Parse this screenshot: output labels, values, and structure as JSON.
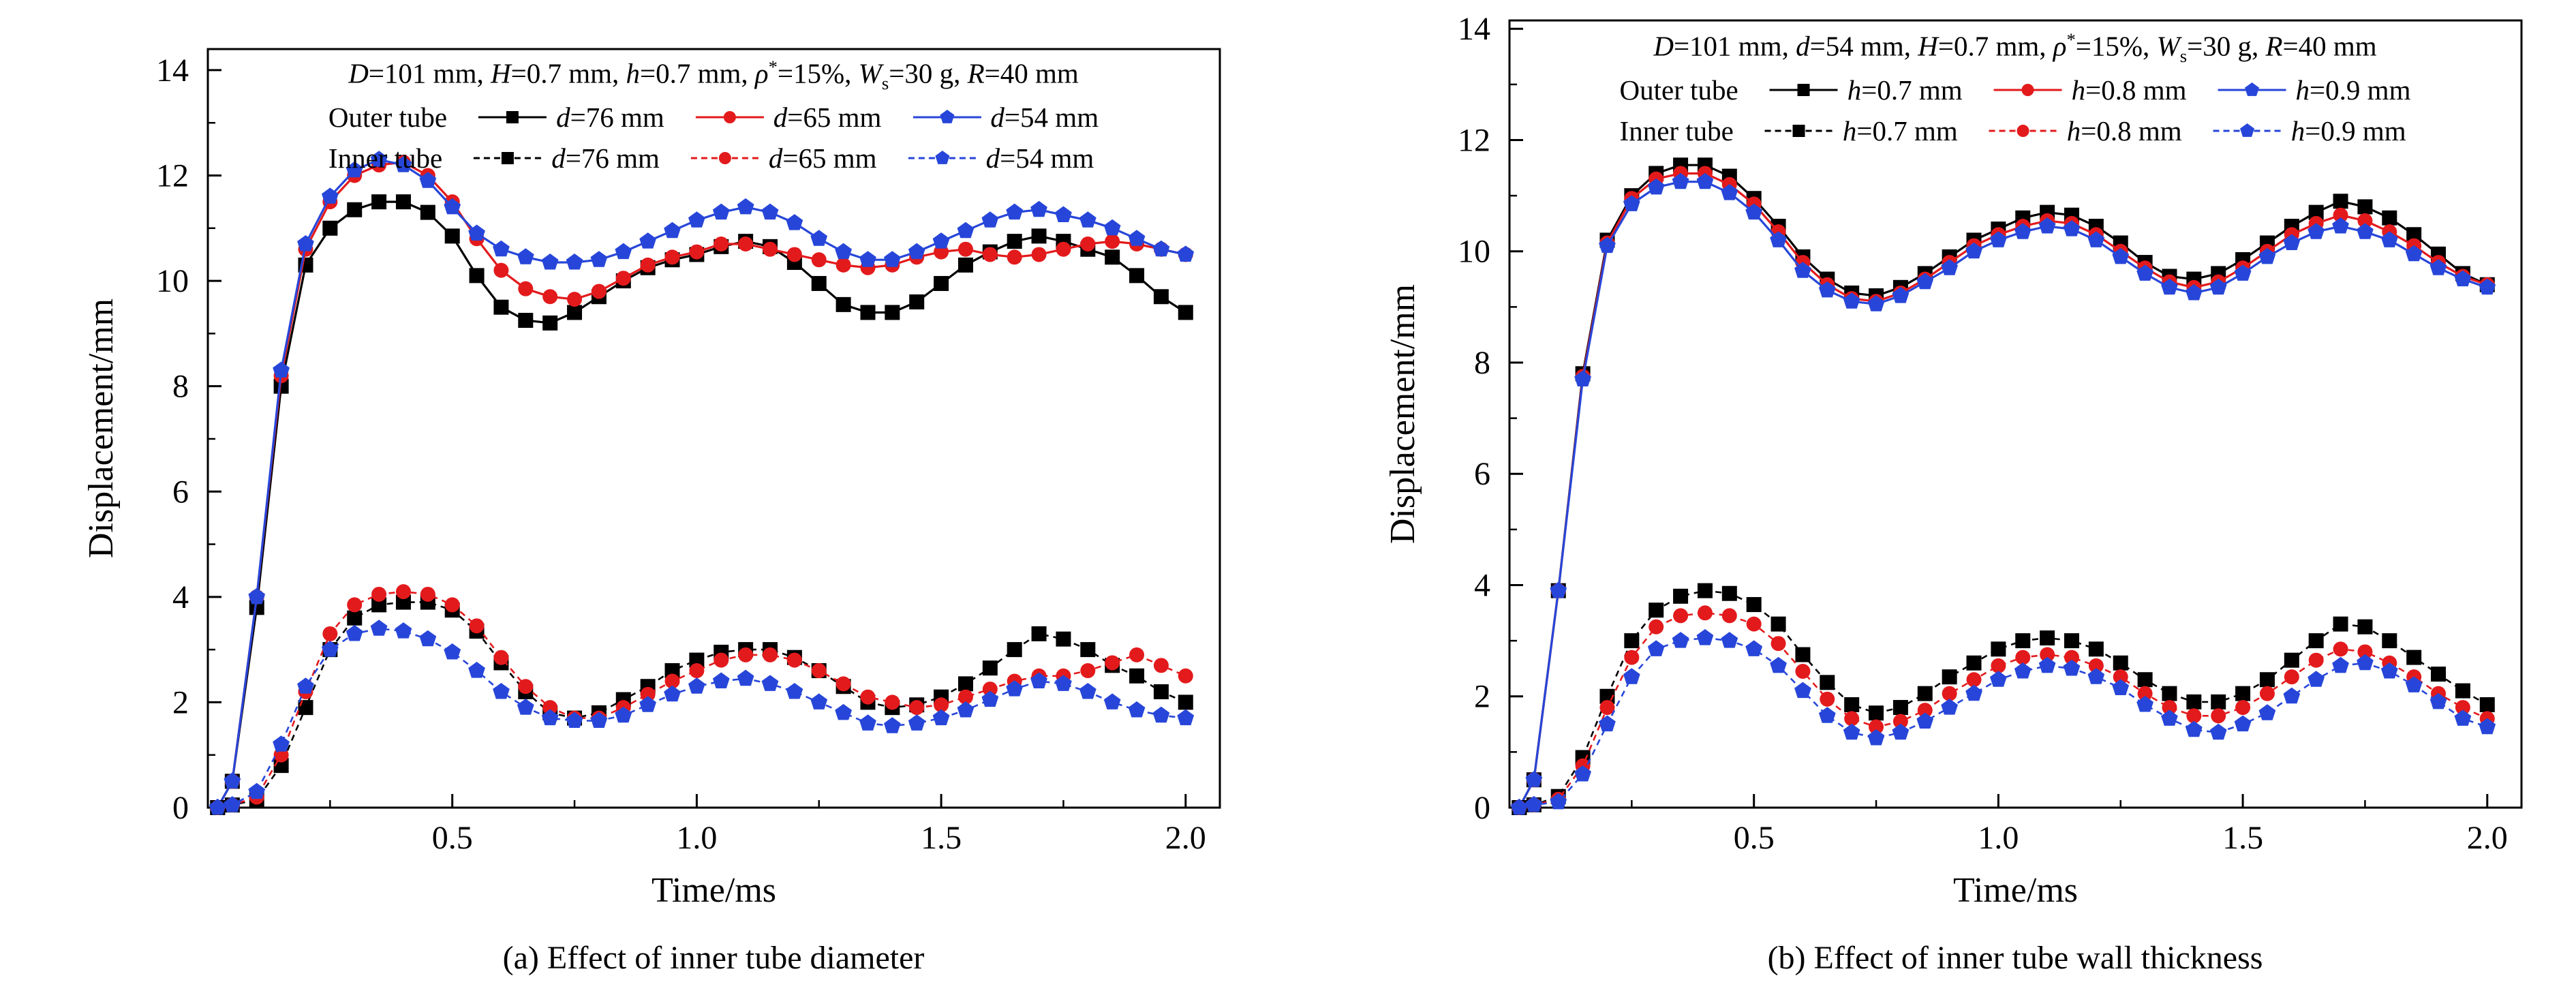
{
  "captions": {
    "a": "(a) Effect of inner tube diameter",
    "b": "(b) Effect of inner tube wall thickness"
  },
  "chart_data": [
    {
      "id": "a",
      "type": "line",
      "xlabel": "Time/ms",
      "ylabel": "Displacement/mm",
      "xlim": [
        0,
        2.07
      ],
      "ylim": [
        0,
        14.4
      ],
      "axes": {
        "x_major": [
          0.5,
          1.0,
          1.5,
          2.0
        ],
        "x_labels": [
          "0.5",
          "1.0",
          "1.5",
          "2.0"
        ],
        "x_minor": [
          0.25,
          0.75,
          1.25,
          1.75
        ],
        "y_major": [
          0,
          2,
          4,
          6,
          8,
          10,
          12,
          14
        ],
        "y_labels": [
          "0",
          "2",
          "4",
          "6",
          "8",
          "10",
          "12",
          "14"
        ],
        "y_minor": [
          1,
          3,
          5,
          7,
          9,
          11,
          13
        ]
      },
      "annotation": [
        {
          "t": "D",
          "i": 1
        },
        {
          "t": "=101 mm, "
        },
        {
          "t": "H",
          "i": 1
        },
        {
          "t": "=0.7 mm, "
        },
        {
          "t": "h",
          "i": 1
        },
        {
          "t": "=0.7 mm, "
        },
        {
          "t": "ρ",
          "i": 1
        },
        {
          "t": "*",
          "sup": 1
        },
        {
          "t": "=15%, "
        },
        {
          "t": "W",
          "i": 1
        },
        {
          "t": "s",
          "sub": 1
        },
        {
          "t": "=30 g, "
        },
        {
          "t": "R",
          "i": 1
        },
        {
          "t": "=40 mm"
        }
      ],
      "x": [
        0.02,
        0.05,
        0.1,
        0.15,
        0.2,
        0.25,
        0.3,
        0.35,
        0.4,
        0.45,
        0.5,
        0.55,
        0.6,
        0.65,
        0.7,
        0.75,
        0.8,
        0.85,
        0.9,
        0.95,
        1.0,
        1.05,
        1.1,
        1.15,
        1.2,
        1.25,
        1.3,
        1.35,
        1.4,
        1.45,
        1.5,
        1.55,
        1.6,
        1.65,
        1.7,
        1.75,
        1.8,
        1.85,
        1.9,
        1.95,
        2.0
      ],
      "series": [
        {
          "key": "outer-d76",
          "group": "Outer tube",
          "label_segments": [
            {
              "t": "d",
              "i": 1
            },
            {
              "t": "=76 mm"
            }
          ],
          "color": "#000000",
          "marker": "square",
          "dash": false,
          "values": [
            0,
            0.5,
            3.8,
            8.0,
            10.3,
            11.0,
            11.35,
            11.5,
            11.5,
            11.3,
            10.85,
            10.1,
            9.5,
            9.25,
            9.2,
            9.4,
            9.7,
            10.0,
            10.25,
            10.4,
            10.5,
            10.65,
            10.75,
            10.65,
            10.35,
            9.95,
            9.55,
            9.4,
            9.4,
            9.6,
            9.95,
            10.3,
            10.55,
            10.75,
            10.85,
            10.75,
            10.6,
            10.45,
            10.1,
            9.7,
            9.4
          ]
        },
        {
          "key": "outer-d65",
          "group": "Outer tube",
          "label_segments": [
            {
              "t": "d",
              "i": 1
            },
            {
              "t": "=65 mm"
            }
          ],
          "color": "#e31a1c",
          "marker": "circle",
          "dash": false,
          "values": [
            0,
            0.5,
            4.0,
            8.2,
            10.6,
            11.5,
            12.0,
            12.2,
            12.25,
            12.0,
            11.5,
            10.8,
            10.2,
            9.85,
            9.7,
            9.65,
            9.8,
            10.05,
            10.3,
            10.45,
            10.55,
            10.7,
            10.7,
            10.6,
            10.5,
            10.4,
            10.3,
            10.25,
            10.3,
            10.45,
            10.55,
            10.6,
            10.5,
            10.45,
            10.5,
            10.6,
            10.7,
            10.75,
            10.7,
            10.6,
            10.5
          ]
        },
        {
          "key": "outer-d54",
          "group": "Outer tube",
          "label_segments": [
            {
              "t": "d",
              "i": 1
            },
            {
              "t": "=54 mm"
            }
          ],
          "color": "#2746d9",
          "marker": "pentagon",
          "dash": false,
          "values": [
            0,
            0.5,
            4.0,
            8.3,
            10.7,
            11.6,
            12.1,
            12.3,
            12.2,
            11.9,
            11.4,
            10.9,
            10.6,
            10.45,
            10.35,
            10.35,
            10.4,
            10.55,
            10.75,
            10.95,
            11.15,
            11.3,
            11.4,
            11.3,
            11.1,
            10.8,
            10.55,
            10.4,
            10.4,
            10.55,
            10.75,
            10.95,
            11.15,
            11.3,
            11.35,
            11.25,
            11.15,
            11.0,
            10.8,
            10.6,
            10.5
          ]
        },
        {
          "key": "inner-d76",
          "group": "Inner tube",
          "label_segments": [
            {
              "t": "d",
              "i": 1
            },
            {
              "t": "=76 mm"
            }
          ],
          "color": "#000000",
          "marker": "square",
          "dash": true,
          "values": [
            0,
            0.05,
            0.15,
            0.8,
            1.9,
            3.0,
            3.6,
            3.85,
            3.9,
            3.9,
            3.75,
            3.35,
            2.75,
            2.2,
            1.8,
            1.7,
            1.8,
            2.05,
            2.3,
            2.6,
            2.8,
            2.95,
            3.0,
            3.0,
            2.85,
            2.6,
            2.3,
            2.0,
            1.9,
            1.95,
            2.1,
            2.35,
            2.65,
            3.0,
            3.3,
            3.2,
            3.0,
            2.7,
            2.5,
            2.2,
            2.0
          ]
        },
        {
          "key": "inner-d65",
          "group": "Inner tube",
          "label_segments": [
            {
              "t": "d",
              "i": 1
            },
            {
              "t": "=65 mm"
            }
          ],
          "color": "#e31a1c",
          "marker": "circle",
          "dash": true,
          "values": [
            0,
            0.05,
            0.2,
            1.0,
            2.2,
            3.3,
            3.85,
            4.05,
            4.1,
            4.05,
            3.85,
            3.45,
            2.85,
            2.3,
            1.9,
            1.7,
            1.7,
            1.9,
            2.15,
            2.4,
            2.6,
            2.8,
            2.9,
            2.9,
            2.8,
            2.6,
            2.35,
            2.1,
            2.0,
            1.9,
            1.95,
            2.1,
            2.25,
            2.4,
            2.5,
            2.5,
            2.6,
            2.75,
            2.9,
            2.7,
            2.5
          ]
        },
        {
          "key": "inner-d54",
          "group": "Inner tube",
          "label_segments": [
            {
              "t": "d",
              "i": 1
            },
            {
              "t": "=54 mm"
            }
          ],
          "color": "#2746d9",
          "marker": "pentagon",
          "dash": true,
          "values": [
            0,
            0.05,
            0.3,
            1.2,
            2.3,
            3.0,
            3.3,
            3.4,
            3.35,
            3.2,
            2.95,
            2.6,
            2.2,
            1.9,
            1.7,
            1.65,
            1.65,
            1.75,
            1.95,
            2.15,
            2.3,
            2.4,
            2.45,
            2.35,
            2.2,
            2.0,
            1.8,
            1.6,
            1.55,
            1.6,
            1.7,
            1.85,
            2.05,
            2.25,
            2.4,
            2.35,
            2.2,
            2.0,
            1.85,
            1.75,
            1.7
          ]
        }
      ],
      "legend": [
        {
          "label": "Outer tube",
          "series": [
            0,
            1,
            2
          ]
        },
        {
          "label": "Inner tube",
          "series": [
            3,
            4,
            5
          ]
        }
      ]
    },
    {
      "id": "b",
      "type": "line",
      "xlabel": "Time/ms",
      "ylabel": "Displacement/mm",
      "xlim": [
        0,
        2.07
      ],
      "ylim": [
        0,
        14.15
      ],
      "axes": {
        "x_major": [
          0.5,
          1.0,
          1.5,
          2.0
        ],
        "x_labels": [
          "0.5",
          "1.0",
          "1.5",
          "2.0"
        ],
        "x_minor": [
          0.25,
          0.75,
          1.25,
          1.75
        ],
        "y_major": [
          0,
          2,
          4,
          6,
          8,
          10,
          12,
          14
        ],
        "y_labels": [
          "0",
          "2",
          "4",
          "6",
          "8",
          "10",
          "12",
          "14"
        ],
        "y_minor": [
          1,
          3,
          5,
          7,
          9,
          11,
          13
        ]
      },
      "annotation": [
        {
          "t": "D",
          "i": 1
        },
        {
          "t": "=101 mm, "
        },
        {
          "t": "d",
          "i": 1
        },
        {
          "t": "=54 mm, "
        },
        {
          "t": "H",
          "i": 1
        },
        {
          "t": "=0.7 mm, "
        },
        {
          "t": "ρ",
          "i": 1
        },
        {
          "t": "*",
          "sup": 1
        },
        {
          "t": "=15%, "
        },
        {
          "t": "W",
          "i": 1
        },
        {
          "t": "s",
          "sub": 1
        },
        {
          "t": "=30 g, "
        },
        {
          "t": "R",
          "i": 1
        },
        {
          "t": "=40 mm"
        }
      ],
      "x": [
        0.02,
        0.05,
        0.1,
        0.15,
        0.2,
        0.25,
        0.3,
        0.35,
        0.4,
        0.45,
        0.5,
        0.55,
        0.6,
        0.65,
        0.7,
        0.75,
        0.8,
        0.85,
        0.9,
        0.95,
        1.0,
        1.05,
        1.1,
        1.15,
        1.2,
        1.25,
        1.3,
        1.35,
        1.4,
        1.45,
        1.5,
        1.55,
        1.6,
        1.65,
        1.7,
        1.75,
        1.8,
        1.85,
        1.9,
        1.95,
        2.0
      ],
      "series": [
        {
          "key": "outer-h07",
          "group": "Outer tube",
          "label_segments": [
            {
              "t": "h",
              "i": 1
            },
            {
              "t": "=0.7 mm"
            }
          ],
          "color": "#000000",
          "marker": "square",
          "dash": false,
          "values": [
            0,
            0.5,
            3.9,
            7.8,
            10.2,
            11.0,
            11.4,
            11.55,
            11.55,
            11.35,
            10.95,
            10.45,
            9.9,
            9.5,
            9.25,
            9.2,
            9.35,
            9.6,
            9.9,
            10.2,
            10.4,
            10.6,
            10.7,
            10.65,
            10.45,
            10.15,
            9.8,
            9.55,
            9.5,
            9.6,
            9.85,
            10.15,
            10.45,
            10.7,
            10.9,
            10.8,
            10.6,
            10.3,
            9.95,
            9.6,
            9.4
          ]
        },
        {
          "key": "outer-h08",
          "group": "Outer tube",
          "label_segments": [
            {
              "t": "h",
              "i": 1
            },
            {
              "t": "=0.8 mm"
            }
          ],
          "color": "#e31a1c",
          "marker": "circle",
          "dash": false,
          "values": [
            0,
            0.5,
            3.9,
            7.75,
            10.15,
            10.95,
            11.3,
            11.4,
            11.4,
            11.2,
            10.85,
            10.35,
            9.8,
            9.4,
            9.15,
            9.1,
            9.25,
            9.5,
            9.8,
            10.1,
            10.3,
            10.45,
            10.55,
            10.5,
            10.3,
            10.0,
            9.7,
            9.45,
            9.35,
            9.45,
            9.7,
            10.0,
            10.3,
            10.5,
            10.65,
            10.55,
            10.35,
            10.1,
            9.8,
            9.55,
            9.4
          ]
        },
        {
          "key": "outer-h09",
          "group": "Outer tube",
          "label_segments": [
            {
              "t": "h",
              "i": 1
            },
            {
              "t": "=0.9 mm"
            }
          ],
          "color": "#2746d9",
          "marker": "pentagon",
          "dash": false,
          "values": [
            0,
            0.5,
            3.9,
            7.7,
            10.1,
            10.85,
            11.15,
            11.25,
            11.25,
            11.05,
            10.7,
            10.2,
            9.65,
            9.3,
            9.1,
            9.05,
            9.2,
            9.45,
            9.7,
            10.0,
            10.2,
            10.35,
            10.45,
            10.4,
            10.2,
            9.9,
            9.6,
            9.35,
            9.25,
            9.35,
            9.6,
            9.9,
            10.15,
            10.35,
            10.45,
            10.35,
            10.2,
            9.95,
            9.7,
            9.5,
            9.35
          ]
        },
        {
          "key": "inner-h07",
          "group": "Inner tube",
          "label_segments": [
            {
              "t": "h",
              "i": 1
            },
            {
              "t": "=0.7 mm"
            }
          ],
          "color": "#000000",
          "marker": "square",
          "dash": true,
          "values": [
            0,
            0.05,
            0.2,
            0.9,
            2.0,
            3.0,
            3.55,
            3.8,
            3.9,
            3.85,
            3.65,
            3.3,
            2.75,
            2.25,
            1.85,
            1.7,
            1.8,
            2.05,
            2.35,
            2.6,
            2.85,
            3.0,
            3.05,
            3.0,
            2.85,
            2.6,
            2.3,
            2.05,
            1.9,
            1.9,
            2.05,
            2.3,
            2.65,
            3.0,
            3.3,
            3.25,
            3.0,
            2.7,
            2.4,
            2.1,
            1.85
          ]
        },
        {
          "key": "inner-h08",
          "group": "Inner tube",
          "label_segments": [
            {
              "t": "h",
              "i": 1
            },
            {
              "t": "=0.8 mm"
            }
          ],
          "color": "#e31a1c",
          "marker": "circle",
          "dash": true,
          "values": [
            0,
            0.05,
            0.15,
            0.75,
            1.8,
            2.7,
            3.25,
            3.45,
            3.5,
            3.45,
            3.3,
            2.95,
            2.45,
            1.95,
            1.6,
            1.45,
            1.55,
            1.75,
            2.05,
            2.3,
            2.55,
            2.7,
            2.75,
            2.7,
            2.55,
            2.35,
            2.05,
            1.8,
            1.65,
            1.65,
            1.8,
            2.05,
            2.35,
            2.65,
            2.85,
            2.8,
            2.6,
            2.35,
            2.05,
            1.8,
            1.6
          ]
        },
        {
          "key": "inner-h09",
          "group": "Inner tube",
          "label_segments": [
            {
              "t": "h",
              "i": 1
            },
            {
              "t": "=0.9 mm"
            }
          ],
          "color": "#2746d9",
          "marker": "pentagon",
          "dash": true,
          "values": [
            0,
            0.05,
            0.1,
            0.6,
            1.5,
            2.35,
            2.85,
            3.0,
            3.05,
            3.0,
            2.85,
            2.55,
            2.1,
            1.65,
            1.35,
            1.25,
            1.35,
            1.55,
            1.8,
            2.05,
            2.3,
            2.45,
            2.55,
            2.5,
            2.35,
            2.15,
            1.85,
            1.6,
            1.4,
            1.35,
            1.5,
            1.7,
            2.0,
            2.3,
            2.55,
            2.6,
            2.45,
            2.2,
            1.9,
            1.6,
            1.45
          ]
        }
      ],
      "legend": [
        {
          "label": "Outer tube",
          "series": [
            0,
            1,
            2
          ]
        },
        {
          "label": "Inner tube",
          "series": [
            3,
            4,
            5
          ]
        }
      ]
    }
  ]
}
